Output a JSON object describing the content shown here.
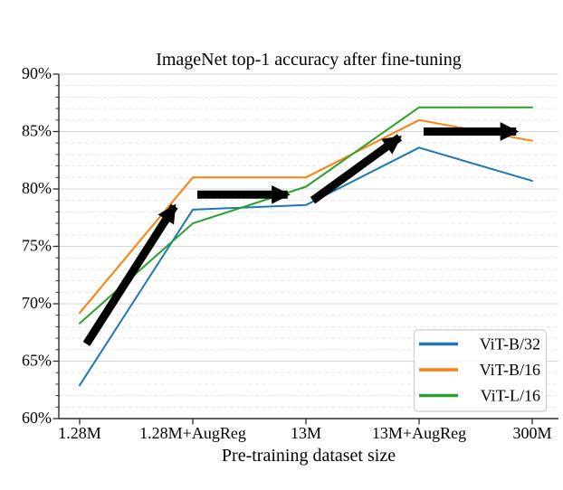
{
  "chart_data": {
    "type": "line",
    "title": "ImageNet top-1 accuracy after fine-tuning",
    "xlabel": "Pre-training dataset size",
    "ylabel": "",
    "categories": [
      "1.28M",
      "1.28M+AugReg",
      "13M",
      "13M+AugReg",
      "300M"
    ],
    "ylim": [
      60,
      90
    ],
    "y_tick_labels": [
      "60%",
      "65%",
      "70%",
      "75%",
      "80%",
      "85%",
      "90%"
    ],
    "y_major_step": 5,
    "y_minor_step": 1,
    "grid": "major solid, minor dashed",
    "legend_position": "lower right",
    "series": [
      {
        "name": "ViT-B/32",
        "color": "#1f77b4",
        "values": [
          62.9,
          78.2,
          78.6,
          83.6,
          80.7
        ]
      },
      {
        "name": "ViT-B/16",
        "color": "#ff7f0e",
        "values": [
          69.2,
          81.0,
          81.0,
          86.0,
          84.2
        ]
      },
      {
        "name": "ViT-L/16",
        "color": "#2ca02c",
        "values": [
          68.3,
          77.0,
          80.2,
          87.1,
          87.1
        ]
      }
    ],
    "annotations": {
      "arrow_color": "#000000",
      "arrows": [
        {
          "x1": 0.06,
          "y1": 66.5,
          "x2": 0.95,
          "y2": 78.5
        },
        {
          "x1": 1.04,
          "y1": 79.5,
          "x2": 1.95,
          "y2": 79.5
        },
        {
          "x1": 2.06,
          "y1": 79.0,
          "x2": 2.94,
          "y2": 84.5
        },
        {
          "x1": 3.04,
          "y1": 85.0,
          "x2": 3.97,
          "y2": 85.0
        }
      ]
    },
    "style": {
      "major_grid_color": "#d4d4d4",
      "minor_grid_color": "#e4e4e4",
      "spine_color": "#2b2b2b",
      "legend_border_color": "#cccccc"
    }
  }
}
